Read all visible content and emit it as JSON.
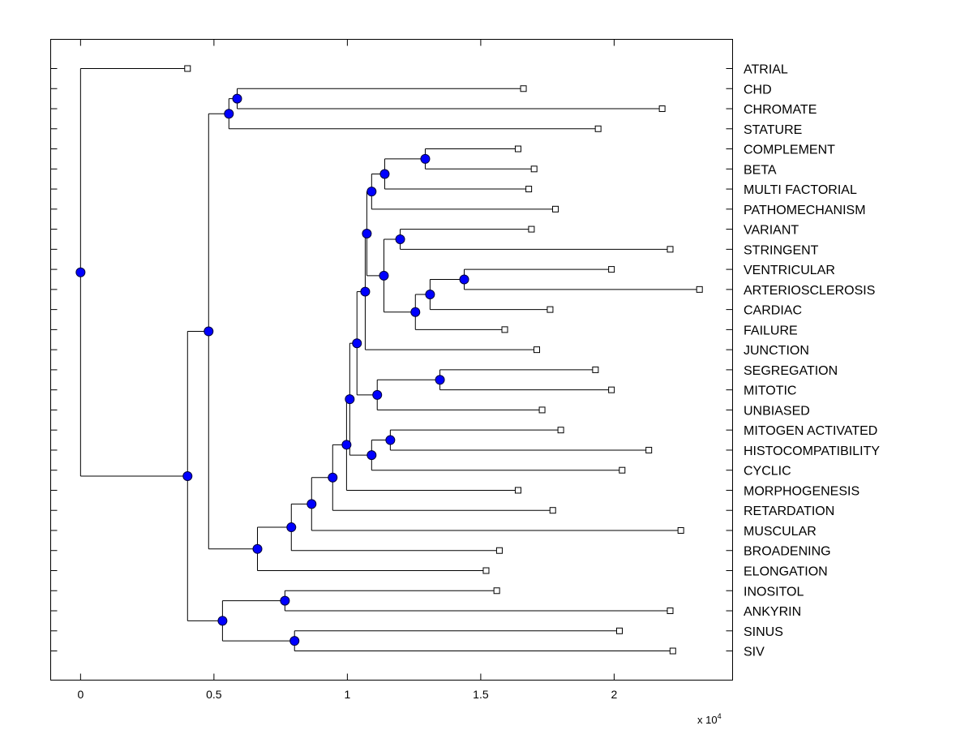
{
  "chart_data": {
    "type": "dendrogram",
    "title": "",
    "xlabel": "",
    "ylabel": "",
    "x_multiplier_label": "x 10",
    "x_multiplier_exponent": "4",
    "xlim": [
      -0.112,
      2.444
    ],
    "xticks": [
      "0",
      "0.5",
      "1",
      "1.5",
      "2"
    ],
    "xtick_values": [
      0,
      0.5,
      1,
      1.5,
      2
    ],
    "grid": false,
    "colors": {
      "internal_node": "#0000ff",
      "leaf_marker": "#ffffff",
      "line": "#000000"
    },
    "tree": {
      "x": 0,
      "children": [
        {
          "label": "ATRIAL",
          "x": 0.401
        },
        {
          "x": 0.401,
          "children": [
            {
              "x": 0.48,
              "children": [
                {
                  "x": 0.556,
                  "children": [
                    {
                      "x": 0.587,
                      "children": [
                        {
                          "label": "CHD",
                          "x": 1.66
                        },
                        {
                          "label": "CHROMATE",
                          "x": 2.18
                        }
                      ]
                    },
                    {
                      "label": "STATURE",
                      "x": 1.94
                    }
                  ]
                },
                {
                  "x": 0.663,
                  "children": [
                    {
                      "x": 0.79,
                      "children": [
                        {
                          "x": 0.866,
                          "children": [
                            {
                              "x": 0.945,
                              "children": [
                                {
                                  "x": 0.997,
                                  "children": [
                                    {
                                      "x": 1.009,
                                      "children": [
                                        {
                                          "x": 1.036,
                                          "children": [
                                            {
                                              "x": 1.067,
                                              "children": [
                                                {
                                                  "x": 1.073,
                                                  "children": [
                                                    {
                                                      "x": 1.091,
                                                      "children": [
                                                        {
                                                          "x": 1.14,
                                                          "children": [
                                                            {
                                                              "x": 1.292,
                                                              "children": [
                                                                {
                                                                  "label": "COMPLEMENT",
                                                                  "x": 1.64
                                                                },
                                                                {
                                                                  "label": "BETA",
                                                                  "x": 1.7
                                                                }
                                                              ]
                                                            },
                                                            {
                                                              "label": "MULTI FACTORIAL",
                                                              "x": 1.68
                                                            }
                                                          ]
                                                        },
                                                        {
                                                          "label": "PATHOMECHANISM",
                                                          "x": 1.78
                                                        }
                                                      ]
                                                    },
                                                    {
                                                      "x": 1.137,
                                                      "children": [
                                                        {
                                                          "x": 1.198,
                                                          "children": [
                                                            {
                                                              "label": "VARIANT",
                                                              "x": 1.69
                                                            },
                                                            {
                                                              "label": "STRINGENT",
                                                              "x": 2.21
                                                            }
                                                          ]
                                                        },
                                                        {
                                                          "x": 1.255,
                                                          "children": [
                                                            {
                                                              "x": 1.31,
                                                              "children": [
                                                                {
                                                                  "x": 1.438,
                                                                  "children": [
                                                                    {
                                                                      "label": "VENTRICULAR",
                                                                      "x": 1.99
                                                                    },
                                                                    {
                                                                      "label": "ARTERIOSCLEROSIS",
                                                                      "x": 2.32
                                                                    }
                                                                  ]
                                                                },
                                                                {
                                                                  "label": "CARDIAC",
                                                                  "x": 1.76
                                                                }
                                                              ]
                                                            },
                                                            {
                                                              "label": "FAILURE",
                                                              "x": 1.59
                                                            }
                                                          ]
                                                        }
                                                      ]
                                                    }
                                                  ]
                                                },
                                                {
                                                  "label": "JUNCTION",
                                                  "x": 1.71
                                                }
                                              ]
                                            },
                                            {
                                              "x": 1.112,
                                              "children": [
                                                {
                                                  "x": 1.347,
                                                  "children": [
                                                    {
                                                      "label": "SEGREGATION",
                                                      "x": 1.93
                                                    },
                                                    {
                                                      "label": "MITOTIC",
                                                      "x": 1.99
                                                    }
                                                  ]
                                                },
                                                {
                                                  "label": "UNBIASED",
                                                  "x": 1.73
                                                }
                                              ]
                                            }
                                          ]
                                        },
                                        {
                                          "x": 1.091,
                                          "children": [
                                            {
                                              "x": 1.161,
                                              "children": [
                                                {
                                                  "label": "MITOGEN ACTIVATED",
                                                  "x": 1.8
                                                },
                                                {
                                                  "label": "HISTOCOMPATIBILITY",
                                                  "x": 2.13
                                                }
                                              ]
                                            },
                                            {
                                              "label": "CYCLIC",
                                              "x": 2.03
                                            }
                                          ]
                                        }
                                      ]
                                    },
                                    {
                                      "label": "MORPHOGENESIS",
                                      "x": 1.64
                                    }
                                  ]
                                },
                                {
                                  "label": "RETARDATION",
                                  "x": 1.77
                                }
                              ]
                            },
                            {
                              "label": "MUSCULAR",
                              "x": 2.25
                            }
                          ]
                        },
                        {
                          "label": "BROADENING",
                          "x": 1.57
                        }
                      ]
                    },
                    {
                      "label": "ELONGATION",
                      "x": 1.52
                    }
                  ]
                }
              ]
            },
            {
              "x": 0.532,
              "children": [
                {
                  "x": 0.766,
                  "children": [
                    {
                      "label": "INOSITOL",
                      "x": 1.56
                    },
                    {
                      "label": "ANKYRIN",
                      "x": 2.21
                    }
                  ]
                },
                {
                  "x": 0.802,
                  "children": [
                    {
                      "label": "SINUS",
                      "x": 2.02
                    },
                    {
                      "label": "SIV",
                      "x": 2.22
                    }
                  ]
                }
              ]
            }
          ]
        }
      ]
    }
  }
}
